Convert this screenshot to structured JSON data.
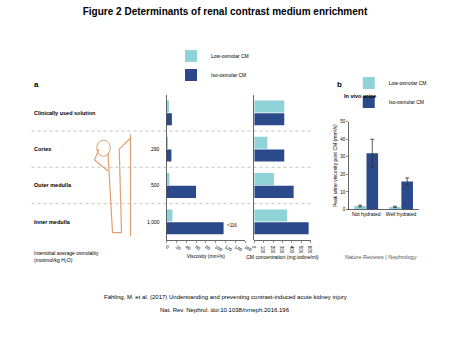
{
  "figure": {
    "title": "Figure 2 Determinants of renal contrast medium enrichment",
    "panel_labels": [
      "a",
      "b"
    ],
    "source": "Nature Reviews | Nephrology",
    "citation": [
      "Fähling, M. et al. (2017) Understanding and preventing contrast-induced acute kidney injury",
      "Nat. Rev. Nephrol. doi:10.1038/nrneph.2016.196"
    ]
  },
  "chart_data": [
    {
      "type": "bar",
      "orientation": "horizontal",
      "categories": [
        "Clinically used solution",
        "Cortex",
        "Outer medulla",
        "Inner medulla"
      ],
      "column_label": "Interstitial average osmolality (mosmol/kg H₂O)",
      "osmolality": [
        null,
        "290",
        "500",
        "1,000"
      ],
      "x_label": "Viscosity (mm²/s)",
      "xlim": [
        0,
        160
      ],
      "xticks": [
        0,
        20,
        40,
        60,
        80,
        100,
        120,
        140,
        160
      ],
      "grid": false,
      "legend": "top",
      "series": [
        {
          "name": "Low-osmolar CM",
          "color": "#8fd3d8",
          "values": [
            5,
            3,
            6,
            12
          ]
        },
        {
          "name": "Iso-osmolar CM",
          "color": "#2b4a8b",
          "values": [
            11,
            10,
            60,
            116
          ]
        }
      ],
      "annotations": [
        {
          "text": ">116",
          "category": "Inner medulla",
          "series": "Iso-osmolar CM"
        }
      ]
    },
    {
      "type": "bar",
      "orientation": "horizontal",
      "categories": [
        "Clinically used solution",
        "Cortex",
        "Outer medulla",
        "Inner medulla"
      ],
      "x_label": "CM concentration (mg iodine/ml)",
      "xlim": [
        0,
        600
      ],
      "xticks": [
        0,
        100,
        200,
        300,
        400,
        500,
        600
      ],
      "grid": false,
      "series": [
        {
          "name": "Low-osmolar CM",
          "color": "#8fd3d8",
          "values": [
            320,
            140,
            210,
            350
          ]
        },
        {
          "name": "Iso-osmolar CM",
          "color": "#2b4a8b",
          "values": [
            320,
            320,
            420,
            580
          ]
        }
      ]
    },
    {
      "type": "bar",
      "title": "In vivo urine",
      "categories": [
        "Not hydrated",
        "Well hydrated"
      ],
      "y_label": "Peak urine viscosity post CM (mm²/s)",
      "ylim": [
        0,
        50
      ],
      "yticks": [
        0,
        10,
        20,
        30,
        40,
        50
      ],
      "grid": false,
      "legend": "top left",
      "series": [
        {
          "name": "Low-osmolar CM",
          "color": "#8fd3d8",
          "values": [
            2,
            1.5
          ],
          "errors": [
            0.5,
            0.4
          ]
        },
        {
          "name": "Iso-osmolar CM",
          "color": "#2b4a8b",
          "values": [
            32,
            16
          ],
          "errors": [
            8,
            2
          ]
        }
      ]
    }
  ]
}
